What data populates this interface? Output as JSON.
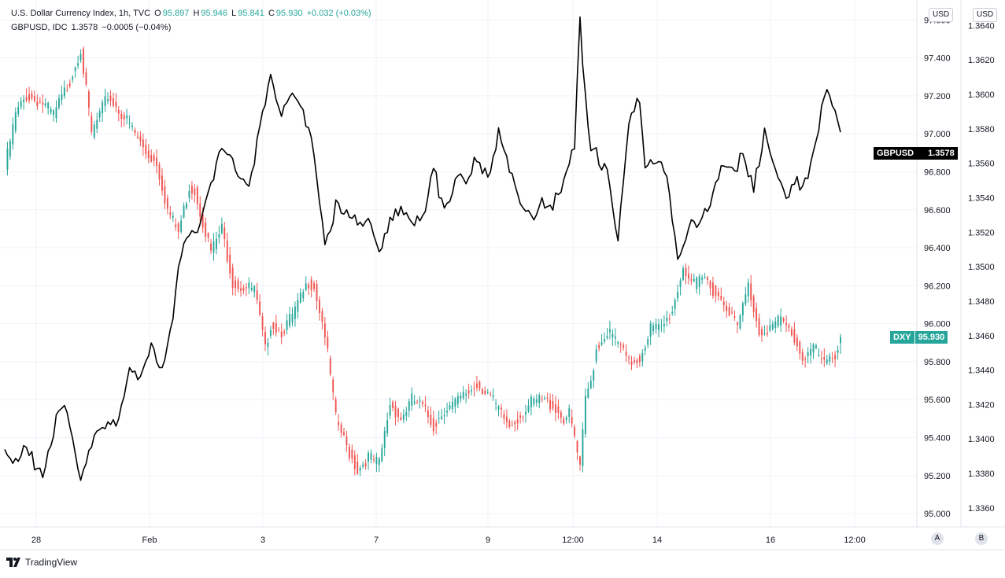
{
  "legend": {
    "dxy": {
      "name": "U.S. Dollar Currency Index, 1h, TVC",
      "o_label": "O",
      "o": "95.897",
      "h_label": "H",
      "h": "95.946",
      "l_label": "L",
      "l": "95.841",
      "c_label": "C",
      "c": "95.930",
      "change": "+0.032 (+0.03%)"
    },
    "gbpusd": {
      "name": "GBPUSD, IDC",
      "last": "1.3578",
      "change": "−0.0005 (−0.04%)"
    }
  },
  "axes": {
    "left_unit": "USD",
    "right_unit": "USD",
    "scale_a": "A",
    "scale_b": "B"
  },
  "tags": {
    "gbpusd_label": "GBPUSD",
    "gbpusd_value": "1.3578",
    "dxy_label": "DXY",
    "dxy_value": "95.930"
  },
  "branding": {
    "name": "TradingView"
  },
  "colors": {
    "up": "#26a69a",
    "down": "#ef5350",
    "line": "#000000",
    "grid": "#f0f3fa",
    "dxy_tag": "#26a69a"
  },
  "chart_data": {
    "type": "candlestick + line",
    "timeframe": "1h",
    "x_ticks": [
      "28",
      "Feb",
      "3",
      "7",
      "9",
      "12:00",
      "14",
      "16",
      "12:00"
    ],
    "series": [
      {
        "name": "U.S. Dollar Currency Index",
        "symbol": "DXY",
        "kind": "candlestick",
        "axis": "DXY scale (USD)",
        "y_ticks": [
          95.0,
          95.2,
          95.4,
          95.6,
          95.8,
          96.0,
          96.2,
          96.4,
          96.6,
          96.8,
          97.0,
          97.2,
          97.4,
          97.6
        ],
        "ylim": [
          94.93,
          97.68
        ],
        "close_path": [
          [
            0,
            96.82
          ],
          [
            4,
            97.1
          ],
          [
            8,
            97.2
          ],
          [
            14,
            97.16
          ],
          [
            18,
            97.1
          ],
          [
            24,
            97.28
          ],
          [
            28,
            97.45
          ],
          [
            32,
            97.0
          ],
          [
            38,
            97.2
          ],
          [
            46,
            97.05
          ],
          [
            52,
            96.9
          ],
          [
            56,
            96.85
          ],
          [
            60,
            96.6
          ],
          [
            64,
            96.48
          ],
          [
            68,
            96.72
          ],
          [
            70,
            96.7
          ],
          [
            76,
            96.38
          ],
          [
            80,
            96.5
          ],
          [
            84,
            96.22
          ],
          [
            86,
            96.2
          ],
          [
            92,
            96.18
          ],
          [
            96,
            95.86
          ],
          [
            98,
            96.0
          ],
          [
            102,
            95.96
          ],
          [
            106,
            96.04
          ],
          [
            108,
            96.1
          ],
          [
            112,
            96.22
          ],
          [
            114,
            96.2
          ],
          [
            118,
            95.95
          ],
          [
            122,
            95.5
          ],
          [
            126,
            95.35
          ],
          [
            130,
            95.23
          ],
          [
            134,
            95.3
          ],
          [
            138,
            95.26
          ],
          [
            142,
            95.58
          ],
          [
            146,
            95.5
          ],
          [
            150,
            95.6
          ],
          [
            154,
            95.56
          ],
          [
            158,
            95.46
          ],
          [
            162,
            95.55
          ],
          [
            166,
            95.58
          ],
          [
            170,
            95.63
          ],
          [
            174,
            95.68
          ],
          [
            178,
            95.64
          ],
          [
            182,
            95.54
          ],
          [
            186,
            95.46
          ],
          [
            190,
            95.52
          ],
          [
            194,
            95.58
          ],
          [
            198,
            95.6
          ],
          [
            202,
            95.57
          ],
          [
            206,
            95.5
          ],
          [
            208,
            95.52
          ],
          [
            210,
            95.4
          ],
          [
            212,
            95.23
          ],
          [
            214,
            95.6
          ],
          [
            216,
            95.7
          ],
          [
            218,
            95.87
          ],
          [
            222,
            95.96
          ],
          [
            226,
            95.9
          ],
          [
            230,
            95.79
          ],
          [
            234,
            95.82
          ],
          [
            238,
            95.98
          ],
          [
            242,
            95.97
          ],
          [
            246,
            96.07
          ],
          [
            250,
            96.3
          ],
          [
            254,
            96.2
          ],
          [
            258,
            96.24
          ],
          [
            262,
            96.16
          ],
          [
            266,
            96.1
          ],
          [
            270,
            95.98
          ],
          [
            274,
            96.2
          ],
          [
            278,
            95.96
          ],
          [
            282,
            95.98
          ],
          [
            286,
            96.02
          ],
          [
            290,
            95.95
          ],
          [
            294,
            95.82
          ],
          [
            298,
            95.88
          ],
          [
            302,
            95.78
          ],
          [
            306,
            95.84
          ],
          [
            308,
            95.93
          ]
        ],
        "last": {
          "open": 95.897,
          "high": 95.946,
          "low": 95.841,
          "close": 95.93,
          "change": 0.032,
          "change_pct": 0.03
        }
      },
      {
        "name": "GBPUSD",
        "symbol": "GBPUSD",
        "kind": "line",
        "axis": "GBPUSD scale (USD)",
        "y_ticks": [
          1.336,
          1.338,
          1.34,
          1.342,
          1.344,
          1.346,
          1.348,
          1.35,
          1.352,
          1.354,
          1.356,
          1.358,
          1.36,
          1.362,
          1.364
        ],
        "ylim": [
          1.3349,
          1.3652
        ],
        "values": [
          [
            0,
            1.3394
          ],
          [
            4,
            1.3385
          ],
          [
            8,
            1.3392
          ],
          [
            14,
            1.3382
          ],
          [
            18,
            1.3406
          ],
          [
            22,
            1.3416
          ],
          [
            28,
            1.3382
          ],
          [
            32,
            1.3398
          ],
          [
            38,
            1.3406
          ],
          [
            42,
            1.3413
          ],
          [
            46,
            1.3443
          ],
          [
            50,
            1.3431
          ],
          [
            54,
            1.3452
          ],
          [
            58,
            1.3442
          ],
          [
            62,
            1.3475
          ],
          [
            66,
            1.3513
          ],
          [
            70,
            1.3516
          ],
          [
            76,
            1.3552
          ],
          [
            80,
            1.3567
          ],
          [
            86,
            1.3556
          ],
          [
            90,
            1.355
          ],
          [
            94,
            1.3578
          ],
          [
            98,
            1.3608
          ],
          [
            102,
            1.3592
          ],
          [
            106,
            1.3605
          ],
          [
            110,
            1.3586
          ],
          [
            114,
            1.3564
          ],
          [
            118,
            1.3515
          ],
          [
            122,
            1.3535
          ],
          [
            126,
            1.3527
          ],
          [
            130,
            1.3526
          ],
          [
            134,
            1.3532
          ],
          [
            138,
            1.3506
          ],
          [
            142,
            1.3523
          ],
          [
            146,
            1.3537
          ],
          [
            150,
            1.353
          ],
          [
            154,
            1.3524
          ],
          [
            158,
            1.3556
          ],
          [
            162,
            1.3535
          ],
          [
            166,
            1.3551
          ],
          [
            170,
            1.3545
          ],
          [
            174,
            1.3562
          ],
          [
            178,
            1.3556
          ],
          [
            182,
            1.3575
          ],
          [
            186,
            1.3554
          ],
          [
            190,
            1.3539
          ],
          [
            194,
            1.3532
          ],
          [
            198,
            1.3535
          ],
          [
            202,
            1.3531
          ],
          [
            206,
            1.3555
          ],
          [
            210,
            1.3573
          ],
          [
            212,
            1.3639
          ],
          [
            214,
            1.3595
          ],
          [
            216,
            1.3562
          ],
          [
            218,
            1.3565
          ],
          [
            222,
            1.3559
          ],
          [
            226,
            1.3514
          ],
          [
            230,
            1.358
          ],
          [
            234,
            1.3596
          ],
          [
            236,
            1.3562
          ],
          [
            240,
            1.3563
          ],
          [
            244,
            1.3549
          ],
          [
            248,
            1.3501
          ],
          [
            252,
            1.3528
          ],
          [
            256,
            1.3525
          ],
          [
            260,
            1.3532
          ],
          [
            264,
            1.3562
          ],
          [
            268,
            1.356
          ],
          [
            272,
            1.3561
          ],
          [
            276,
            1.3543
          ],
          [
            280,
            1.3582
          ],
          [
            284,
            1.3558
          ],
          [
            288,
            1.3538
          ],
          [
            292,
            1.3547
          ],
          [
            296,
            1.3555
          ],
          [
            300,
            1.3582
          ],
          [
            303,
            1.3601
          ],
          [
            306,
            1.3587
          ],
          [
            308,
            1.3578
          ]
        ]
      }
    ]
  }
}
